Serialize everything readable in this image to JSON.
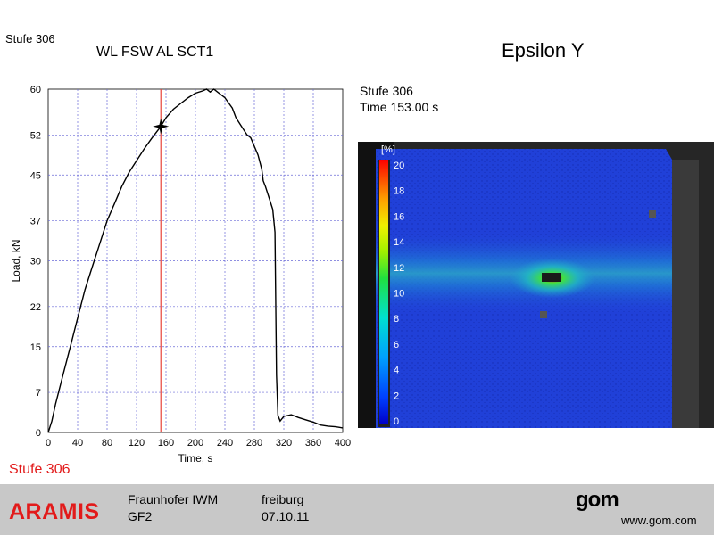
{
  "header": {
    "stage_label": "Stufe 306",
    "chart_title": "WL FSW AL SCT1",
    "field_title": "Epsilon Y"
  },
  "stage_info": {
    "stage": "Stufe 306",
    "time": "Time  153.00 s"
  },
  "stage_label_bottom": "Stufe 306",
  "footer": {
    "brand": "ARAMIS",
    "org_line1": "Fraunhofer IWM",
    "org_line2": "GF2",
    "location": "freiburg",
    "date": "07.10.11",
    "logo": "gom",
    "url": "www.gom.com"
  },
  "colors": {
    "accent_red": "#e21a1a",
    "footer_bg": "#c8c8c8",
    "grid": "#6a6ad8",
    "marker_line": "#e8433a",
    "field_low": "#1f3fd6"
  },
  "chart_data": {
    "type": "line",
    "title": "",
    "xlabel": "Time, s",
    "ylabel": "Load, kN",
    "xlim": [
      0,
      400
    ],
    "ylim": [
      0,
      60
    ],
    "x_ticks": [
      0,
      40,
      80,
      120,
      160,
      200,
      240,
      280,
      320,
      360,
      400
    ],
    "y_ticks": [
      0,
      7,
      15,
      22,
      30,
      37,
      45,
      52,
      60
    ],
    "grid": true,
    "marker_time": 153,
    "marker_load": 53.5,
    "series": [
      {
        "name": "",
        "x": [
          0,
          5,
          10,
          20,
          30,
          40,
          50,
          60,
          70,
          80,
          90,
          100,
          110,
          120,
          130,
          140,
          150,
          153,
          160,
          170,
          180,
          190,
          200,
          210,
          215,
          220,
          225,
          230,
          240,
          250,
          255,
          260,
          265,
          270,
          275,
          280,
          285,
          290,
          292,
          295,
          300,
          305,
          308,
          310,
          312,
          315,
          320,
          330,
          340,
          350,
          360,
          370,
          380,
          390,
          400
        ],
        "y": [
          0,
          2,
          5,
          10,
          15,
          20,
          25,
          29,
          33,
          37,
          40,
          43,
          45.5,
          47.5,
          49.5,
          51.3,
          53,
          53.5,
          55,
          56.5,
          57.5,
          58.5,
          59.3,
          59.7,
          60,
          59.5,
          60,
          59.5,
          58.5,
          56.7,
          55,
          54,
          53,
          52,
          51.5,
          50,
          48.5,
          46,
          44,
          43,
          41,
          39,
          35,
          10,
          3,
          2,
          2.8,
          3.1,
          2.6,
          2.2,
          1.8,
          1.3,
          1.1,
          1.0,
          0.8
        ]
      }
    ]
  },
  "colorbar": {
    "unit": "[%]",
    "ticks": [
      20,
      18,
      16,
      14,
      12,
      10,
      8,
      6,
      4,
      2,
      0
    ],
    "range": [
      0,
      20
    ]
  }
}
